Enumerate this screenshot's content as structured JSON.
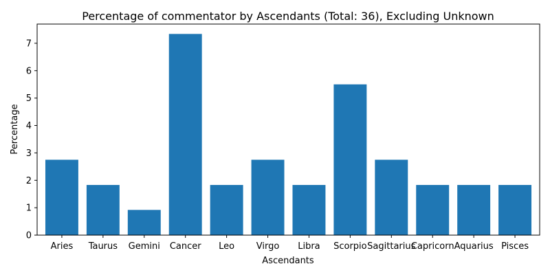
{
  "chart_data": {
    "type": "bar",
    "title": "Percentage of commentator by Ascendants (Total: 36), Excluding Unknown",
    "xlabel": "Ascendants",
    "ylabel": "Percentage",
    "categories": [
      "Aries",
      "Taurus",
      "Gemini",
      "Cancer",
      "Leo",
      "Virgo",
      "Libra",
      "Scorpio",
      "Sagittarius",
      "Capricorn",
      "Aquarius",
      "Pisces"
    ],
    "values": [
      2.75,
      1.83,
      0.92,
      7.34,
      1.83,
      2.75,
      1.83,
      5.5,
      2.75,
      1.83,
      1.83,
      1.83
    ],
    "yticks": [
      0,
      1,
      2,
      3,
      4,
      5,
      6,
      7
    ],
    "ylim": [
      0,
      7.7
    ],
    "grid": false,
    "bar_color": "#1f77b4"
  }
}
